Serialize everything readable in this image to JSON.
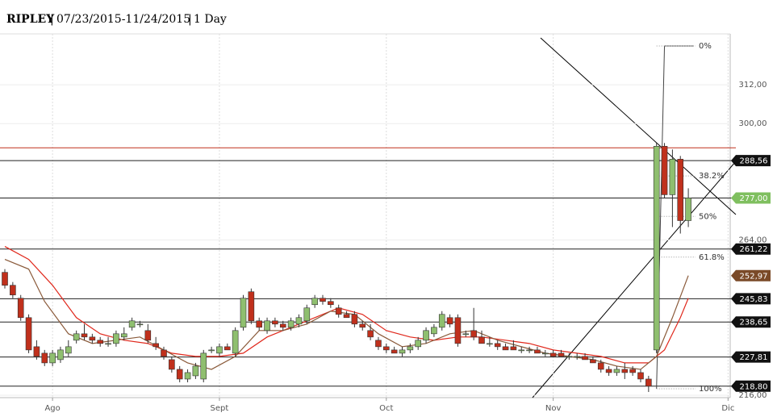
{
  "header": {
    "symbol": "RIPLEY",
    "range": "07/23/2015-11/24/2015",
    "interval": "1 Day"
  },
  "chart_data": {
    "type": "candlestick",
    "xlim": [
      -0.61,
      91.27
    ],
    "xticks": [
      {
        "value": 6,
        "label": "Ago"
      },
      {
        "value": 27,
        "label": "Sept"
      },
      {
        "value": 48,
        "label": "Oct"
      },
      {
        "value": 69,
        "label": "Nov"
      },
      {
        "value": 91,
        "label": "Dic"
      }
    ],
    "ylim": [
      215.25,
      326.5
    ],
    "yticks": [
      {
        "value": 216,
        "label": "216,00"
      },
      {
        "value": 264,
        "label": "264,00"
      },
      {
        "value": 300,
        "label": "300,00"
      },
      {
        "value": 312,
        "label": "312,00"
      }
    ],
    "grid": true,
    "up_color": "#8fbf6f",
    "down_color": "#c0301c",
    "open": [
      254,
      250,
      246,
      240,
      231,
      229,
      226,
      227,
      229,
      233,
      235,
      234,
      233,
      232,
      232,
      234,
      237,
      238,
      236,
      232,
      230,
      227,
      224,
      221,
      222,
      221,
      230,
      229,
      231,
      229,
      237,
      248,
      239,
      236,
      239,
      238,
      237,
      238,
      239,
      244,
      246,
      245,
      243,
      241,
      241,
      238,
      236,
      233,
      231,
      230,
      229,
      230,
      231,
      233,
      235,
      237,
      240,
      240,
      235,
      236,
      234,
      232,
      232,
      231,
      231,
      230,
      230,
      230,
      229,
      229,
      229,
      228,
      228,
      228,
      227,
      226,
      224,
      223,
      224,
      224,
      223,
      221,
      230,
      293,
      278,
      289,
      270
    ],
    "high": [
      255,
      251,
      247,
      241,
      233,
      230,
      230,
      231,
      233,
      236,
      238,
      235,
      234,
      234,
      236,
      237,
      240,
      239,
      238,
      234,
      231,
      228,
      225,
      224,
      226,
      230,
      231,
      232,
      232,
      237,
      247,
      249,
      240,
      240,
      240,
      239,
      240,
      241,
      244,
      247,
      247,
      246,
      244,
      242,
      242,
      239,
      238,
      234,
      232,
      231,
      231,
      232,
      234,
      237,
      238,
      242,
      241,
      241,
      236,
      243,
      236,
      234,
      233,
      232,
      233,
      231,
      231,
      231,
      230,
      230,
      230,
      229,
      229,
      229,
      228,
      227,
      225,
      225,
      226,
      225,
      224,
      222,
      294,
      294,
      292,
      290,
      280
    ],
    "low": [
      249,
      246,
      239,
      229,
      227,
      225,
      225,
      226,
      228,
      232,
      233,
      232,
      231,
      231,
      231,
      233,
      236,
      237,
      232,
      230,
      227,
      223,
      220,
      220,
      221,
      220,
      229,
      228,
      230,
      228,
      236,
      238,
      236,
      235,
      237,
      236,
      236,
      237,
      238,
      243,
      244,
      243,
      240,
      240,
      237,
      236,
      233,
      230,
      229,
      229,
      228,
      229,
      230,
      232,
      234,
      236,
      237,
      231,
      234,
      233,
      232,
      231,
      230,
      230,
      230,
      229,
      229,
      229,
      228,
      228,
      228,
      227,
      227,
      227,
      226,
      223,
      222,
      222,
      221,
      222,
      220,
      217,
      229,
      277,
      268,
      266,
      268
    ],
    "close": [
      250,
      247,
      240,
      230,
      228,
      226,
      229,
      230,
      231,
      235,
      234,
      233,
      232,
      232,
      235,
      235,
      239,
      238,
      233,
      231,
      228,
      224,
      221,
      223,
      225,
      229,
      230,
      231,
      230,
      236,
      246,
      239,
      237,
      239,
      238,
      237,
      239,
      240,
      243,
      246,
      245,
      244,
      241,
      240,
      238,
      237,
      234,
      231,
      230,
      229,
      230,
      231,
      233,
      236,
      237,
      241,
      238,
      232,
      235,
      234,
      232,
      232,
      231,
      230,
      230,
      230,
      230,
      229,
      229,
      228,
      228,
      228,
      228,
      227,
      226,
      224,
      223,
      224,
      223,
      223,
      221,
      218.8,
      293,
      278,
      289,
      270,
      277
    ],
    "moving_averages": [
      {
        "color": "#e0281c",
        "x": [
          0,
          3,
          6,
          9,
          12,
          15,
          18,
          21,
          24,
          27,
          30,
          33,
          36,
          39,
          42,
          45,
          48,
          51,
          54,
          57,
          60,
          63,
          66,
          69,
          72,
          75,
          78,
          81,
          83,
          85,
          86
        ],
        "values": [
          262,
          258,
          250,
          240,
          235,
          233,
          232,
          229,
          228,
          228,
          229,
          234,
          237,
          240,
          243,
          241,
          236,
          234,
          233,
          234,
          234,
          233,
          232,
          230,
          229,
          228,
          226,
          226,
          230,
          240,
          246
        ]
      },
      {
        "color": "#8a5a3a",
        "x": [
          0,
          3,
          5,
          8,
          11,
          14,
          17,
          20,
          23,
          26,
          29,
          32,
          35,
          38,
          41,
          44,
          47,
          50,
          53,
          56,
          59,
          62,
          65,
          68,
          71,
          74,
          77,
          80,
          82,
          84,
          86
        ],
        "values": [
          258,
          255,
          245,
          235,
          232,
          233,
          234,
          230,
          226,
          224,
          228,
          236,
          236,
          238,
          242,
          241,
          235,
          231,
          232,
          235,
          236,
          233,
          231,
          229,
          228,
          227,
          225,
          224,
          228,
          240,
          253
        ]
      }
    ],
    "resistance": {
      "value": 292.5,
      "color": "#c0301c"
    },
    "levels": [
      {
        "value": 288.56,
        "label": "288,56",
        "color": "#111111",
        "line": true
      },
      {
        "value": 277,
        "label": "277,00",
        "color": "#7fbf5f",
        "line": true
      },
      {
        "value": 261.22,
        "label": "261,22",
        "color": "#111111",
        "line": true
      },
      {
        "value": 252.97,
        "label": "252,97",
        "color": "#7a4a28",
        "line": false
      },
      {
        "value": 245.83,
        "label": "245,83",
        "color": "#111111",
        "line": true
      },
      {
        "value": 238.65,
        "label": "238,65",
        "color": "#111111",
        "line": true
      },
      {
        "value": 227.81,
        "label": "227,81",
        "color": "#111111",
        "line": true
      },
      {
        "value": 218.8,
        "label": "218,80",
        "color": "#111111",
        "line": true
      }
    ],
    "fib_levels": [
      {
        "value": 324,
        "label": "0%"
      },
      {
        "value": 283.8,
        "label": "38.2%"
      },
      {
        "value": 271.3,
        "label": "50%"
      },
      {
        "value": 258.7,
        "label": "61.8%"
      },
      {
        "value": 218,
        "label": "100%"
      }
    ]
  }
}
